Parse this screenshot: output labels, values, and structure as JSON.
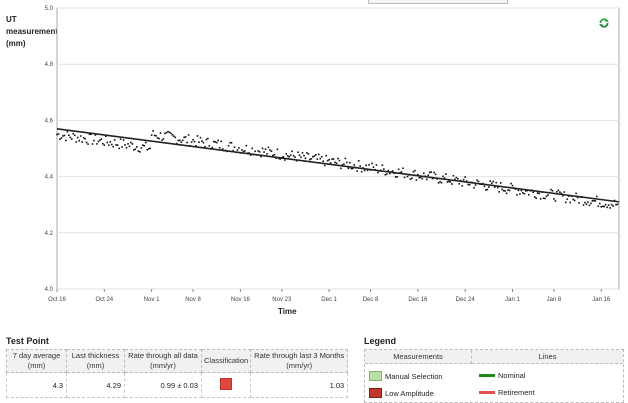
{
  "chart": {
    "y_title_line1": "UT",
    "y_title_line2": "measurement",
    "y_title_line3": "(mm)",
    "x_title": "Time",
    "y_ticks": [
      "5.0",
      "4.8",
      "4.6",
      "4.4",
      "4.2",
      "4.0"
    ],
    "x_ticks": [
      "Oct 16",
      "Oct 24",
      "Nov 1",
      "Nov 8",
      "Nov 16",
      "Nov 23",
      "Dec 1",
      "Dec 8",
      "Dec 16",
      "Dec 24",
      "Jan 1",
      "Jan 8",
      "Jan 16"
    ],
    "colors": {
      "points": "#111111",
      "trend": "#222222",
      "grid": "#e2e2e2",
      "refresh": "#3aa651"
    },
    "refresh_icon": "refresh-icon"
  },
  "chart_data": {
    "type": "scatter",
    "xlabel": "Time",
    "ylabel": "UT measurement (mm)",
    "ylim": [
      4.0,
      5.0
    ],
    "x_range": [
      "Oct 16",
      "Jan 19"
    ],
    "grid": true,
    "trend_line": {
      "start": {
        "x": "Oct 16",
        "y": 4.57
      },
      "end": {
        "x": "Jan 19",
        "y": 4.31
      }
    },
    "series": [
      {
        "points_per_day": 4,
        "noise_mm": 0.02,
        "segments": [
          {
            "from": "Oct 16",
            "to": "Nov 1",
            "approx_y": [
              4.55,
              4.5
            ]
          },
          {
            "from": "Nov 1",
            "to": "Dec 24",
            "approx_y": [
              4.55,
              4.38
            ]
          },
          {
            "from": "Dec 24",
            "to": "Jan 19",
            "approx_y": [
              4.38,
              4.3
            ]
          }
        ]
      }
    ]
  },
  "test_point": {
    "title": "Test Point",
    "headers": [
      "7 day average\n(mm)",
      "Last thickness\n(mm)",
      "Rate through all data\n(mm/yr)",
      "Classification",
      "Rate through last 3 Months\n(mm/yr)"
    ],
    "row": [
      "4.3",
      "4.29",
      "0.99 ± 0.03",
      "",
      "1.03"
    ],
    "classification_color": "#e0473f"
  },
  "legend": {
    "title": "Legend",
    "col_measurements": "Measurements",
    "col_lines": "Lines",
    "measurements": [
      {
        "label": "Manual Selection",
        "color": "#b8e0a8"
      },
      {
        "label": "Low Amplitude",
        "color": "#c0392b"
      }
    ],
    "lines": [
      {
        "label": "Nominal",
        "color": "#1e8a1e"
      },
      {
        "label": "Retirement",
        "color": "#e05050"
      }
    ]
  }
}
